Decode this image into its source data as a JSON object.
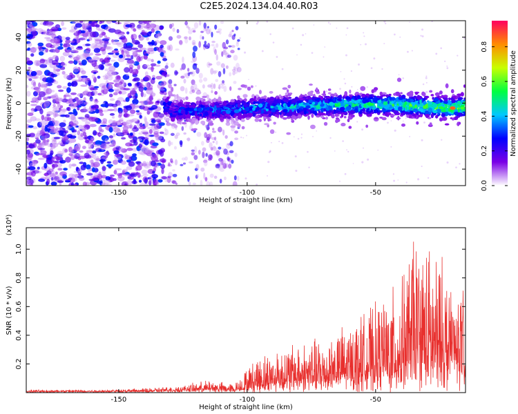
{
  "title": "C2E5.2024.134.04.40.R03",
  "chart_data": [
    {
      "type": "heatmap",
      "xlabel": "Height of straight line (km)",
      "ylabel": "Frequency (Hz)",
      "xlim": [
        -186,
        -15
      ],
      "ylim": [
        -50,
        50
      ],
      "xticks": [
        -150,
        -100,
        -50
      ],
      "yticks": [
        -40,
        -20,
        0,
        20,
        40
      ],
      "colorbar": {
        "label": "Normalized spectral amplitude",
        "range": [
          0,
          0.95
        ],
        "ticks": [
          0.0,
          0.2,
          0.4,
          0.6,
          0.8
        ],
        "colormap": [
          "#ffffff",
          "#7a00e6",
          "#0000ff",
          "#00c8ff",
          "#00ff40",
          "#c8ff00",
          "#ff8c00",
          "#ff0060"
        ]
      },
      "description_points": {
        "signal_band_center_hz": [
          [
            -130,
            -5
          ],
          [
            -110,
            -4
          ],
          [
            -100,
            -3
          ],
          [
            -80,
            -2
          ],
          [
            -60,
            -1
          ],
          [
            -40,
            -1
          ],
          [
            -20,
            -3
          ],
          [
            -16,
            -2
          ]
        ],
        "noise_onset_km": -132,
        "sparse_noise_until_km": -103,
        "peak_amplitude": 0.9,
        "peak_location": [
          -20,
          -3
        ]
      }
    },
    {
      "type": "line",
      "xlabel": "Height of straight line (km)",
      "ylabel": "SNR (10 * v/v)",
      "yscale_label": "(x10⁴)",
      "xlim": [
        -186,
        -15
      ],
      "ylim": [
        0,
        1.15
      ],
      "xticks": [
        -150,
        -100,
        -50
      ],
      "yticks": [
        0.2,
        0.4,
        0.6,
        0.8,
        1.0
      ],
      "color": "#e8302e",
      "envelope": {
        "x": [
          -186,
          -160,
          -140,
          -125,
          -115,
          -105,
          -100,
          -95,
          -90,
          -80,
          -70,
          -60,
          -50,
          -45,
          -40,
          -35,
          -30,
          -25,
          -20,
          -16,
          -15
        ],
        "y_max": [
          0.02,
          0.02,
          0.03,
          0.05,
          0.09,
          0.06,
          0.18,
          0.27,
          0.3,
          0.36,
          0.4,
          0.5,
          0.62,
          0.72,
          0.78,
          1.14,
          1.06,
          0.98,
          0.82,
          0.75,
          0.15
        ],
        "y_base": [
          0.01,
          0.01,
          0.01,
          0.02,
          0.02,
          0.02,
          0.03,
          0.05,
          0.06,
          0.08,
          0.1,
          0.12,
          0.14,
          0.16,
          0.18,
          0.2,
          0.2,
          0.2,
          0.22,
          0.2,
          0.05
        ]
      }
    }
  ]
}
